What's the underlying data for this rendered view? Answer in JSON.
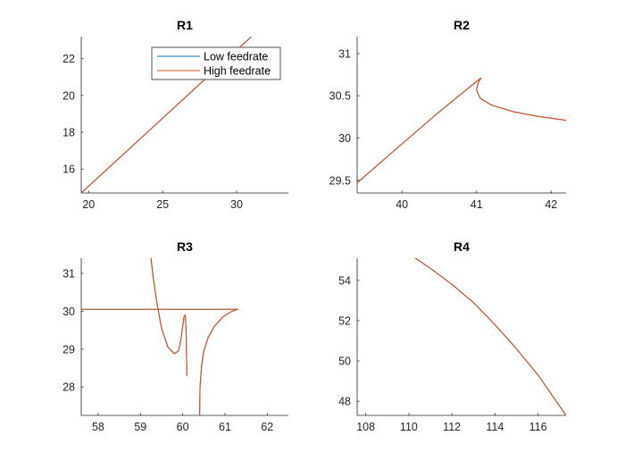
{
  "colors": {
    "low": "#0072BD",
    "high": "#D95319",
    "axis": "#262626"
  },
  "legend": {
    "location": "top-right of R1",
    "entries": [
      "Low feedrate",
      "High feedrate"
    ]
  },
  "chart_data": [
    {
      "type": "line",
      "title": "R1",
      "xlabel": "",
      "ylabel": "",
      "xlim": [
        19.5,
        33.5
      ],
      "ylim": [
        14.7,
        23.2
      ],
      "xticks": [
        20,
        25,
        30
      ],
      "yticks": [
        16,
        18,
        20,
        22
      ],
      "grid": false,
      "series": [
        {
          "name": "Low feedrate",
          "color": "#0072BD",
          "x": [
            19.5,
            31.0
          ],
          "y": [
            14.7,
            23.2
          ]
        },
        {
          "name": "High feedrate",
          "color": "#D95319",
          "x": [
            19.5,
            31.0
          ],
          "y": [
            14.7,
            23.2
          ]
        }
      ]
    },
    {
      "type": "line",
      "title": "R2",
      "xlabel": "",
      "ylabel": "",
      "xlim": [
        39.4,
        42.2
      ],
      "ylim": [
        29.35,
        31.2
      ],
      "xticks": [
        40,
        41,
        42
      ],
      "yticks": [
        29.5,
        30,
        30.5,
        31
      ],
      "grid": false,
      "series": [
        {
          "name": "Low feedrate",
          "color": "#0072BD",
          "x": [
            39.4,
            40.0,
            40.5,
            41.0,
            41.06,
            41.02,
            41.0,
            41.05,
            41.2,
            41.5,
            41.8,
            42.2
          ],
          "y": [
            29.47,
            29.93,
            30.31,
            30.67,
            30.71,
            30.65,
            30.57,
            30.47,
            30.39,
            30.31,
            30.26,
            30.21
          ]
        },
        {
          "name": "High feedrate",
          "color": "#D95319",
          "x": [
            39.4,
            40.0,
            40.5,
            41.0,
            41.06,
            41.02,
            41.0,
            41.05,
            41.2,
            41.5,
            41.8,
            42.2
          ],
          "y": [
            29.47,
            29.93,
            30.31,
            30.67,
            30.71,
            30.65,
            30.57,
            30.47,
            30.39,
            30.31,
            30.26,
            30.21
          ]
        }
      ]
    },
    {
      "type": "line",
      "title": "R3",
      "xlabel": "",
      "ylabel": "",
      "xlim": [
        57.6,
        62.5
      ],
      "ylim": [
        27.25,
        31.4
      ],
      "xticks": [
        58,
        59,
        60,
        61,
        62
      ],
      "yticks": [
        28,
        29,
        30,
        31
      ],
      "grid": false,
      "series": [
        {
          "name": "Low feedrate",
          "color": "#0072BD",
          "x": [
            57.6,
            61.3
          ],
          "y": [
            30.05,
            30.05
          ]
        },
        {
          "name": "High feedrate",
          "color": "#D95319",
          "x": [
            57.6,
            61.3
          ],
          "y": [
            30.05,
            30.05
          ]
        },
        {
          "name": "Low feedrate",
          "color": "#0072BD",
          "x": [
            59.25,
            59.3,
            59.4,
            59.5,
            59.65,
            59.8,
            59.9,
            59.95,
            60.0,
            60.03,
            60.06,
            60.08,
            60.09,
            60.1
          ],
          "y": [
            31.4,
            30.9,
            30.15,
            29.55,
            29.05,
            28.88,
            28.95,
            29.2,
            29.6,
            29.85,
            29.9,
            29.5,
            28.8,
            28.3
          ]
        },
        {
          "name": "High feedrate",
          "color": "#D95319",
          "x": [
            59.25,
            59.3,
            59.4,
            59.5,
            59.65,
            59.8,
            59.9,
            59.95,
            60.0,
            60.03,
            60.06,
            60.08,
            60.09,
            60.1
          ],
          "y": [
            31.4,
            30.9,
            30.15,
            29.55,
            29.05,
            28.88,
            28.95,
            29.2,
            29.6,
            29.85,
            29.9,
            29.5,
            28.8,
            28.3
          ]
        },
        {
          "name": "Low feedrate",
          "color": "#0072BD",
          "x": [
            60.4,
            60.41,
            60.45,
            60.5,
            60.6,
            60.75,
            60.95,
            61.15,
            61.3
          ],
          "y": [
            27.25,
            28.0,
            28.6,
            28.95,
            29.3,
            29.6,
            29.85,
            29.99,
            30.05
          ]
        },
        {
          "name": "High feedrate",
          "color": "#D95319",
          "x": [
            60.4,
            60.41,
            60.45,
            60.5,
            60.6,
            60.75,
            60.95,
            61.15,
            61.3
          ],
          "y": [
            27.25,
            28.0,
            28.6,
            28.95,
            29.3,
            29.6,
            29.85,
            29.99,
            30.05
          ]
        }
      ]
    },
    {
      "type": "line",
      "title": "R4",
      "xlabel": "",
      "ylabel": "",
      "xlim": [
        107.6,
        117.3
      ],
      "ylim": [
        47.3,
        55.1
      ],
      "xticks": [
        108,
        110,
        112,
        114,
        116
      ],
      "yticks": [
        48,
        50,
        52,
        54
      ],
      "grid": false,
      "series": [
        {
          "name": "Low feedrate",
          "color": "#0072BD",
          "x": [
            110.3,
            111,
            112,
            113,
            114,
            115,
            116,
            117.3
          ],
          "y": [
            55.1,
            54.6,
            53.8,
            52.9,
            51.8,
            50.6,
            49.3,
            47.3
          ]
        },
        {
          "name": "High feedrate",
          "color": "#D95319",
          "x": [
            110.3,
            111,
            112,
            113,
            114,
            115,
            116,
            117.3
          ],
          "y": [
            55.1,
            54.6,
            53.8,
            52.9,
            51.8,
            50.6,
            49.3,
            47.3
          ]
        }
      ]
    }
  ]
}
